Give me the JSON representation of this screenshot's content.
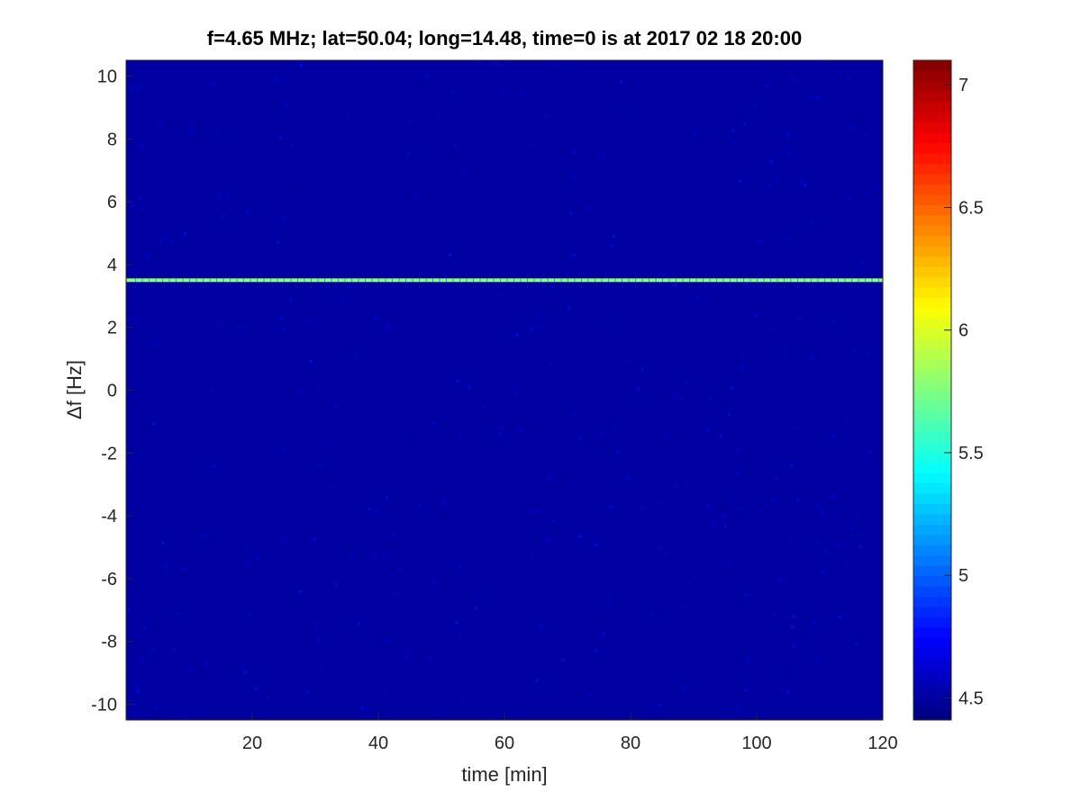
{
  "chart_data": {
    "type": "heatmap",
    "title": "f=4.65 MHz;  lat=50.04; long=14.48, time=0 is at 2017 02 18 20:00",
    "xlabel": "time [min]",
    "ylabel": "Δf [Hz]",
    "xlim": [
      0,
      120
    ],
    "ylim": [
      -10.5,
      10.5
    ],
    "xticks": [
      20,
      40,
      60,
      80,
      100,
      120
    ],
    "yticks": [
      10,
      8,
      6,
      4,
      2,
      0,
      -2,
      -4,
      -6,
      -8,
      -10
    ],
    "colormap": "jet",
    "clim": [
      4.41,
      7.1
    ],
    "colorbar_ticks": [
      7,
      6.5,
      6,
      5.5,
      5,
      4.5
    ],
    "background_value": 4.5,
    "features": [
      {
        "kind": "horizontal line",
        "delta_f": 3.5,
        "time_range": [
          0,
          120
        ],
        "value": 5.8
      }
    ],
    "grid": false,
    "colorbar_position": "right"
  }
}
